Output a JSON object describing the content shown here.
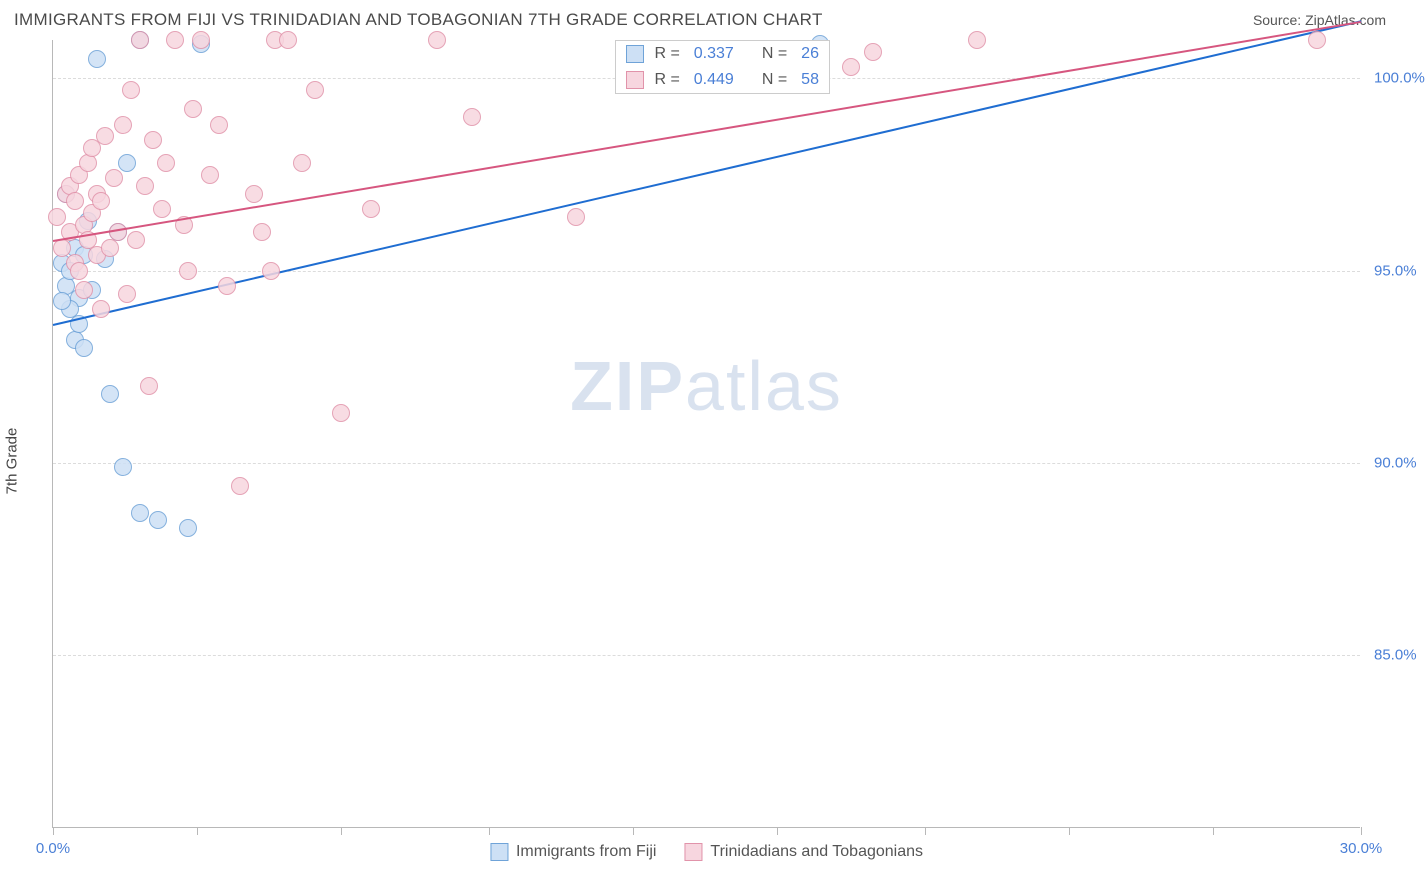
{
  "header": {
    "title": "IMMIGRANTS FROM FIJI VS TRINIDADIAN AND TOBAGONIAN 7TH GRADE CORRELATION CHART",
    "source": "Source: ZipAtlas.com"
  },
  "chart": {
    "type": "scatter",
    "ylabel": "7th Grade",
    "watermark_bold": "ZIP",
    "watermark_rest": "atlas",
    "xlim": [
      0,
      30
    ],
    "ylim": [
      80.5,
      101.0
    ],
    "y_ticks": [
      85.0,
      90.0,
      95.0,
      100.0
    ],
    "y_tick_labels": [
      "85.0%",
      "90.0%",
      "95.0%",
      "100.0%"
    ],
    "x_ticks": [
      0,
      3.3,
      6.6,
      10,
      13.3,
      16.6,
      20,
      23.3,
      26.6,
      30
    ],
    "x_tick_labels": {
      "0": "0.0%",
      "30": "30.0%"
    },
    "grid_color": "#dcdcdc",
    "axis_color": "#b8b8b8",
    "background_color": "#ffffff",
    "marker_radius": 9,
    "marker_stroke": 1.2,
    "series": [
      {
        "name": "Immigrants from Fiji",
        "fill": "#cde0f5",
        "stroke": "#6fa3d8",
        "trend_color": "#1f6dd1",
        "R": "0.337",
        "N": "26",
        "trend": {
          "x1": 0,
          "y1": 93.6,
          "x2": 30,
          "y2": 101.5
        },
        "points": [
          [
            0.2,
            95.2
          ],
          [
            0.3,
            94.6
          ],
          [
            0.4,
            95.0
          ],
          [
            0.5,
            95.6
          ],
          [
            0.6,
            94.3
          ],
          [
            0.7,
            95.4
          ],
          [
            0.5,
            93.2
          ],
          [
            0.6,
            93.6
          ],
          [
            0.4,
            94.0
          ],
          [
            0.3,
            97.0
          ],
          [
            0.8,
            96.3
          ],
          [
            1.0,
            100.5
          ],
          [
            1.2,
            95.3
          ],
          [
            1.3,
            91.8
          ],
          [
            1.5,
            96.0
          ],
          [
            1.6,
            89.9
          ],
          [
            1.7,
            97.8
          ],
          [
            2.0,
            88.7
          ],
          [
            2.0,
            101.0
          ],
          [
            2.4,
            88.5
          ],
          [
            3.1,
            88.3
          ],
          [
            3.4,
            100.9
          ],
          [
            0.9,
            94.5
          ],
          [
            17.6,
            100.9
          ],
          [
            0.7,
            93.0
          ],
          [
            0.2,
            94.2
          ]
        ]
      },
      {
        "name": "Trinidadians and Tobagonians",
        "fill": "#f7d6df",
        "stroke": "#e193aa",
        "trend_color": "#d6567f",
        "R": "0.449",
        "N": "58",
        "trend": {
          "x1": 0,
          "y1": 95.8,
          "x2": 30,
          "y2": 101.5
        },
        "points": [
          [
            0.1,
            96.4
          ],
          [
            0.2,
            95.6
          ],
          [
            0.3,
            97.0
          ],
          [
            0.4,
            96.0
          ],
          [
            0.4,
            97.2
          ],
          [
            0.5,
            95.2
          ],
          [
            0.5,
            96.8
          ],
          [
            0.6,
            95.0
          ],
          [
            0.6,
            97.5
          ],
          [
            0.7,
            94.5
          ],
          [
            0.7,
            96.2
          ],
          [
            0.8,
            95.8
          ],
          [
            0.8,
            97.8
          ],
          [
            0.9,
            96.5
          ],
          [
            0.9,
            98.2
          ],
          [
            1.0,
            95.4
          ],
          [
            1.0,
            97.0
          ],
          [
            1.1,
            96.8
          ],
          [
            1.1,
            94.0
          ],
          [
            1.2,
            98.5
          ],
          [
            1.3,
            95.6
          ],
          [
            1.4,
            97.4
          ],
          [
            1.5,
            96.0
          ],
          [
            1.6,
            98.8
          ],
          [
            1.7,
            94.4
          ],
          [
            1.8,
            99.7
          ],
          [
            1.9,
            95.8
          ],
          [
            2.0,
            101.0
          ],
          [
            2.1,
            97.2
          ],
          [
            2.2,
            92.0
          ],
          [
            2.3,
            98.4
          ],
          [
            2.5,
            96.6
          ],
          [
            2.6,
            97.8
          ],
          [
            2.8,
            101.0
          ],
          [
            3.0,
            96.2
          ],
          [
            3.1,
            95.0
          ],
          [
            3.2,
            99.2
          ],
          [
            3.4,
            101.0
          ],
          [
            3.6,
            97.5
          ],
          [
            3.8,
            98.8
          ],
          [
            4.0,
            94.6
          ],
          [
            4.3,
            89.4
          ],
          [
            4.6,
            97.0
          ],
          [
            4.8,
            96.0
          ],
          [
            5.0,
            95.0
          ],
          [
            5.1,
            101.0
          ],
          [
            5.4,
            101.0
          ],
          [
            5.7,
            97.8
          ],
          [
            6.0,
            99.7
          ],
          [
            6.6,
            91.3
          ],
          [
            7.3,
            96.6
          ],
          [
            8.8,
            101.0
          ],
          [
            9.6,
            99.0
          ],
          [
            12.0,
            96.4
          ],
          [
            18.3,
            100.3
          ],
          [
            18.8,
            100.7
          ],
          [
            21.2,
            101.0
          ],
          [
            29.0,
            101.0
          ]
        ]
      }
    ],
    "stats_box": {
      "left_pct": 43.0,
      "top_pct": 0
    },
    "bottom_legend": [
      {
        "label": "Immigrants from Fiji",
        "fill": "#cde0f5",
        "stroke": "#6fa3d8"
      },
      {
        "label": "Trinidadians and Tobagonians",
        "fill": "#f7d6df",
        "stroke": "#e193aa"
      }
    ]
  }
}
